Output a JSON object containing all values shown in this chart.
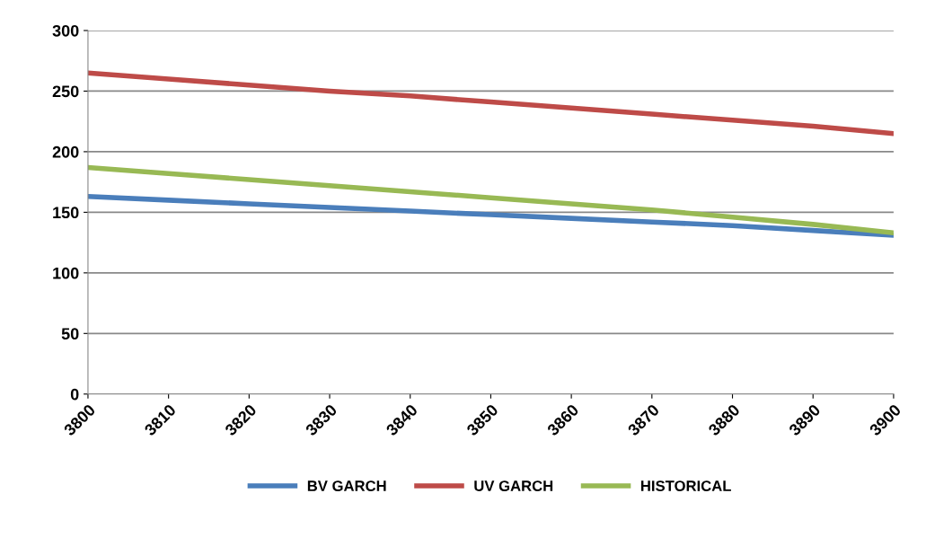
{
  "chart_data": {
    "type": "line",
    "x": [
      3800,
      3810,
      3820,
      3830,
      3840,
      3850,
      3860,
      3870,
      3880,
      3890,
      3900
    ],
    "series": [
      {
        "name": "BV GARCH",
        "color": "#4a7ebb",
        "values": [
          163,
          160,
          157,
          154,
          151,
          148,
          145,
          142,
          139,
          135,
          131
        ]
      },
      {
        "name": "UV GARCH",
        "color": "#be4b48",
        "values": [
          265,
          260,
          255,
          250,
          246,
          241,
          236,
          231,
          226,
          221,
          215
        ]
      },
      {
        "name": "HISTORICAL",
        "color": "#98b954",
        "values": [
          187,
          182,
          177,
          172,
          167,
          162,
          157,
          152,
          146,
          140,
          133
        ]
      }
    ],
    "xlim": [
      3800,
      3900
    ],
    "xticks": [
      3800,
      3810,
      3820,
      3830,
      3840,
      3850,
      3860,
      3870,
      3880,
      3890,
      3900
    ],
    "ylim": [
      0,
      300
    ],
    "yticks": [
      0,
      50,
      100,
      150,
      200,
      250,
      300
    ],
    "grid": "y",
    "legend": "bottom",
    "marker": "none",
    "line_style": "solid"
  }
}
